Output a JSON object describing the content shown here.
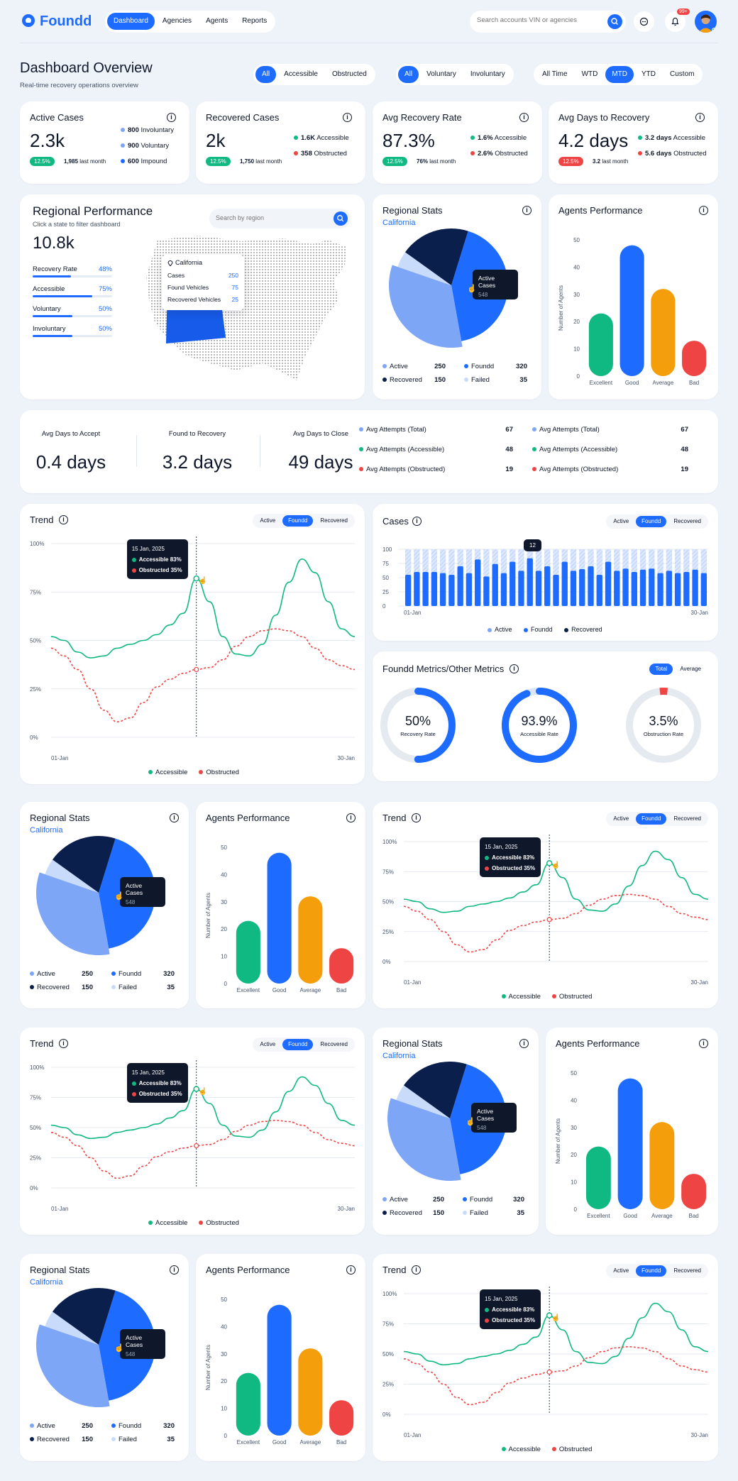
{
  "brand": {
    "name": "Foundd"
  },
  "nav": {
    "items": [
      "Dashboard",
      "Agencies",
      "Agents",
      "Reports"
    ],
    "active": 0
  },
  "search": {
    "placeholder": "Search accounts VIN or agencies"
  },
  "notifications": {
    "badge": "99+"
  },
  "page": {
    "title": "Dashboard Overview",
    "subtitle": "Real-time recovery operations overview"
  },
  "filters": {
    "access": {
      "items": [
        "All",
        "Accessible",
        "Obstructed"
      ],
      "active": 0
    },
    "type": {
      "items": [
        "All",
        "Voluntary",
        "Involuntary"
      ],
      "active": 0
    },
    "period": {
      "items": [
        "All Time",
        "WTD",
        "MTD",
        "YTD",
        "Custom"
      ],
      "active": 2
    }
  },
  "kpis": [
    {
      "title": "Active Cases",
      "value": "2.3k",
      "badge": "12.5%",
      "last_value": "1,985",
      "last_label": "last month",
      "side": [
        {
          "value": "800",
          "label": "Involuntary"
        },
        {
          "value": "900",
          "label": "Voluntary"
        },
        {
          "value": "600",
          "label": "Impound"
        }
      ]
    },
    {
      "title": "Recovered Cases",
      "value": "2k",
      "badge": "12.5%",
      "last_value": "1,750",
      "last_label": "last month",
      "side": [
        {
          "value": "1.6K",
          "label": "Accessible"
        },
        {
          "value": "358",
          "label": "Obstructed"
        }
      ]
    },
    {
      "title": "Avg Recovery Rate",
      "value": "87.3%",
      "badge": "12.5%",
      "last_value": "76%",
      "last_label": "last month",
      "side": [
        {
          "value": "1.6%",
          "label": "Accessible"
        },
        {
          "value": "2.6%",
          "label": "Obstructed"
        }
      ]
    },
    {
      "title": "Avg Days to Recovery",
      "value": "4.2 days",
      "badge": "12.5%",
      "last_value": "3.2",
      "last_label": "last month",
      "side": [
        {
          "value": "3.2 days",
          "label": "Accessible"
        },
        {
          "value": "5.6 days",
          "label": "Obstructed"
        }
      ]
    }
  ],
  "regional": {
    "title": "Regional Performance",
    "subtitle": "Click a state to filter dashboard",
    "total": "10.8k",
    "search_placeholder": "Search by region",
    "metrics": [
      {
        "label": "Recovery Rate",
        "value": "48%",
        "level": 0.48
      },
      {
        "label": "Accessible",
        "value": "75%",
        "level": 0.75
      },
      {
        "label": "Voluntary",
        "value": "50%",
        "level": 0.5
      },
      {
        "label": "Involuntary",
        "value": "50%",
        "level": 0.5
      }
    ],
    "tooltip": {
      "state": "California",
      "rows": [
        {
          "label": "Cases",
          "value": "250"
        },
        {
          "label": "Found Vehicles",
          "value": "75"
        },
        {
          "label": "Recovered Vehicles",
          "value": "25"
        }
      ]
    }
  },
  "regional_stats": {
    "title": "Regional Stats",
    "state": "California",
    "tooltip_label": "Active Cases",
    "tooltip_value": "548",
    "legend": [
      {
        "label": "Active",
        "value": "250",
        "color": "#7ea6f7"
      },
      {
        "label": "Foundd",
        "value": "320",
        "color": "#1e6bff"
      },
      {
        "label": "Recovered",
        "value": "150",
        "color": "#0b1f4d"
      },
      {
        "label": "Failed",
        "value": "35",
        "color": "#c9dbfb"
      }
    ]
  },
  "agents": {
    "title": "Agents Performance",
    "ylabel": "Number of Agents"
  },
  "avg_days": [
    {
      "label": "Avg Days to Accept",
      "value": "0.4 days"
    },
    {
      "label": "Found to Recovery",
      "value": "3.2 days"
    },
    {
      "label": "Avg Days to Close",
      "value": "49 days"
    }
  ],
  "attempts_left": [
    {
      "label": "Avg Attempts (Total)",
      "value": "67",
      "color": "#7ea6f7"
    },
    {
      "label": "Avg Attempts (Accessible)",
      "value": "48",
      "color": "#10b981"
    },
    {
      "label": "Avg Attempts (Obstructed)",
      "value": "19",
      "color": "#ef4444"
    }
  ],
  "attempts_right": [
    {
      "label": "Avg Attempts (Total)",
      "value": "67",
      "color": "#7ea6f7"
    },
    {
      "label": "Avg Attempts (Accessible)",
      "value": "48",
      "color": "#10b981"
    },
    {
      "label": "Avg Attempts (Obstructed)",
      "value": "19",
      "color": "#ef4444"
    }
  ],
  "trend": {
    "title": "Trend",
    "tabs": [
      "Active",
      "Foundd",
      "Recovered"
    ],
    "active_tab": 1,
    "tooltip": {
      "date": "15 Jan, 2025",
      "a": "Accessible 83%",
      "b": "Obstructed 35%"
    },
    "legend": [
      "Accessible",
      "Obstructed"
    ]
  },
  "cases": {
    "title": "Cases",
    "tabs": [
      "Active",
      "Foundd",
      "Recovered"
    ],
    "active_tab": 1,
    "tooltip": "12",
    "legend": [
      "Active",
      "Foundd",
      "Recovered"
    ]
  },
  "metrics": {
    "title": "Foundd Metrics/Other Metrics",
    "tabs": [
      "Total",
      "Average"
    ],
    "active_tab": 0,
    "gauges": [
      {
        "value": "50%",
        "label": "Recovery Rate",
        "level": 0.5
      },
      {
        "value": "93.9%",
        "label": "Accessible Rate",
        "level": 0.939
      },
      {
        "value": "3.5%",
        "label": "Obstruction Rate",
        "level": 0.035
      }
    ]
  },
  "chart_data": [
    {
      "type": "pie",
      "title": "Regional Stats",
      "labels": [
        "Active",
        "Foundd",
        "Recovered",
        "Failed"
      ],
      "values": [
        250,
        320,
        150,
        35
      ]
    },
    {
      "type": "bar",
      "title": "Agents Performance",
      "categories": [
        "Excellent",
        "Good",
        "Average",
        "Bad"
      ],
      "values": [
        23,
        48,
        32,
        13
      ],
      "ylabel": "Number of Agents",
      "ylim": [
        0,
        50
      ],
      "yticks": [
        "0",
        "10",
        "20",
        "30",
        "40",
        "50"
      ],
      "colors": [
        "#10b981",
        "#1e6bff",
        "#f59e0b",
        "#ef4444"
      ]
    },
    {
      "type": "line",
      "title": "Trend",
      "x_start": "01-Jan",
      "x_end": "30-Jan",
      "yticks": [
        "0%",
        "25%",
        "50%",
        "75%",
        "100%"
      ],
      "ylim": [
        0,
        100
      ],
      "series": [
        {
          "name": "Accessible",
          "color": "#10b981",
          "values": [
            52,
            50,
            44,
            41,
            42,
            46,
            48,
            50,
            53,
            58,
            64,
            82,
            70,
            52,
            43,
            42,
            48,
            63,
            80,
            92,
            85,
            70,
            56,
            52
          ]
        },
        {
          "name": "Obstructed",
          "color": "#ef4444",
          "values": [
            46,
            42,
            35,
            25,
            14,
            8,
            10,
            18,
            26,
            30,
            33,
            35,
            36,
            40,
            47,
            52,
            55,
            56,
            55,
            52,
            46,
            40,
            37,
            35
          ]
        }
      ]
    },
    {
      "type": "bar",
      "title": "Cases",
      "x_start": "01-Jan",
      "x_end": "30-Jan",
      "yticks": [
        "0",
        "25",
        "50",
        "75",
        "100"
      ],
      "ylim": [
        0,
        100
      ],
      "values": [
        55,
        60,
        60,
        60,
        58,
        55,
        70,
        58,
        82,
        52,
        74,
        58,
        78,
        62,
        84,
        62,
        70,
        55,
        78,
        62,
        65,
        70,
        55,
        78,
        62,
        66,
        60,
        64,
        66,
        58,
        62,
        58,
        60,
        64,
        58
      ]
    }
  ]
}
